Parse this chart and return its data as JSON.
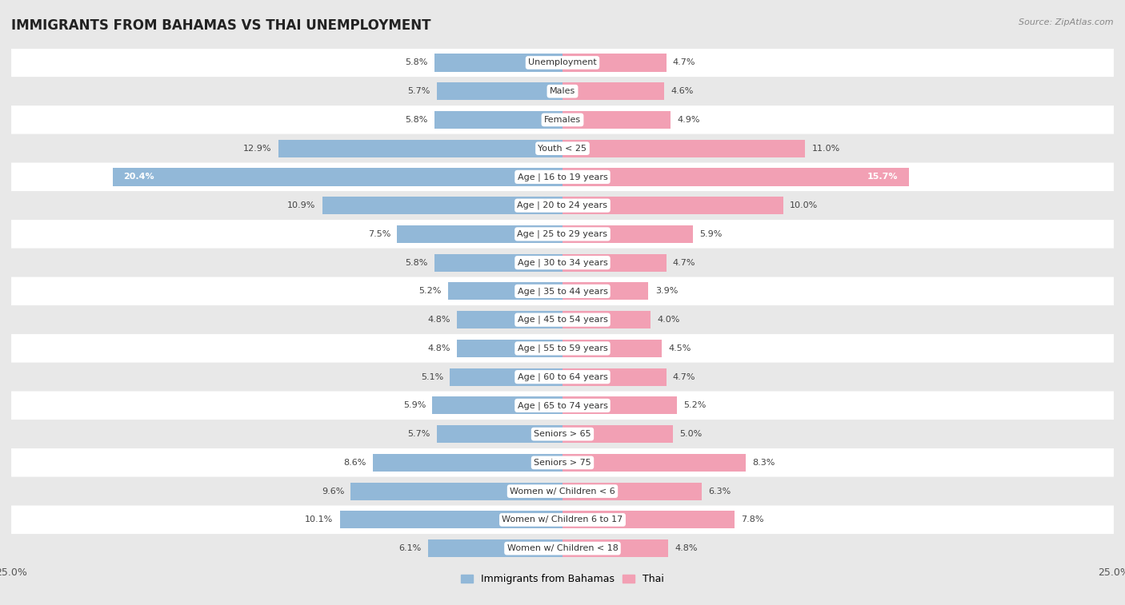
{
  "title": "IMMIGRANTS FROM BAHAMAS VS THAI UNEMPLOYMENT",
  "source": "Source: ZipAtlas.com",
  "categories": [
    "Unemployment",
    "Males",
    "Females",
    "Youth < 25",
    "Age | 16 to 19 years",
    "Age | 20 to 24 years",
    "Age | 25 to 29 years",
    "Age | 30 to 34 years",
    "Age | 35 to 44 years",
    "Age | 45 to 54 years",
    "Age | 55 to 59 years",
    "Age | 60 to 64 years",
    "Age | 65 to 74 years",
    "Seniors > 65",
    "Seniors > 75",
    "Women w/ Children < 6",
    "Women w/ Children 6 to 17",
    "Women w/ Children < 18"
  ],
  "bahamas_values": [
    5.8,
    5.7,
    5.8,
    12.9,
    20.4,
    10.9,
    7.5,
    5.8,
    5.2,
    4.8,
    4.8,
    5.1,
    5.9,
    5.7,
    8.6,
    9.6,
    10.1,
    6.1
  ],
  "thai_values": [
    4.7,
    4.6,
    4.9,
    11.0,
    15.7,
    10.0,
    5.9,
    4.7,
    3.9,
    4.0,
    4.5,
    4.7,
    5.2,
    5.0,
    8.3,
    6.3,
    7.8,
    4.8
  ],
  "bahamas_color": "#92b8d8",
  "thai_color": "#f2a0b4",
  "bahamas_label": "Immigrants from Bahamas",
  "thai_label": "Thai",
  "xlim": 25.0,
  "bg_color": "#e8e8e8",
  "row_colors": [
    "#ffffff",
    "#e8e8e8"
  ],
  "title_fontsize": 12,
  "label_fontsize": 8,
  "value_fontsize": 8,
  "bar_height": 0.62
}
